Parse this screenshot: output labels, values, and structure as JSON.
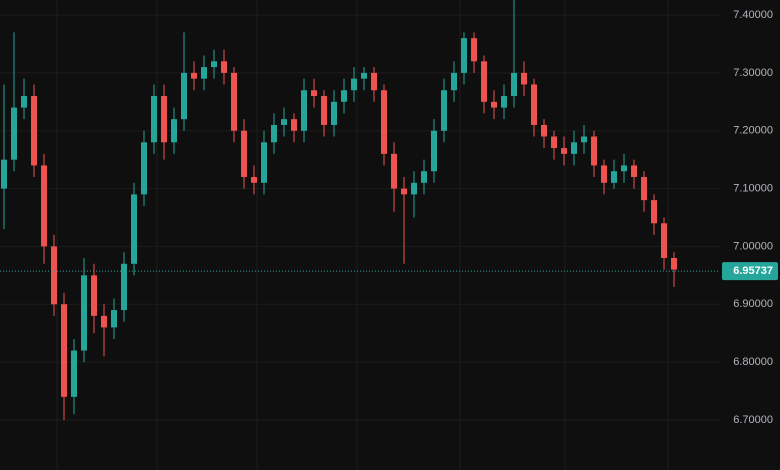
{
  "chart_data": {
    "type": "candlestick",
    "open": [
      7.1,
      7.15,
      7.24,
      7.26,
      7.14,
      7.0,
      6.9,
      6.74,
      6.82,
      6.95,
      6.88,
      6.86,
      6.89,
      6.97,
      7.09,
      7.18,
      7.26,
      7.18,
      7.22,
      7.3,
      7.29,
      7.31,
      7.32,
      7.3,
      7.2,
      7.12,
      7.11,
      7.18,
      7.21,
      7.22,
      7.2,
      7.27,
      7.26,
      7.21,
      7.25,
      7.27,
      7.29,
      7.3,
      7.27,
      7.16,
      7.1,
      7.09,
      7.11,
      7.13,
      7.2,
      7.27,
      7.3,
      7.36,
      7.32,
      7.25,
      7.24,
      7.26,
      7.3,
      7.28,
      7.21,
      7.19,
      7.17,
      7.16,
      7.18,
      7.19,
      7.14,
      7.11,
      7.13,
      7.14,
      7.12,
      7.08,
      7.04,
      6.98
    ],
    "high": [
      7.28,
      7.37,
      7.29,
      7.28,
      7.16,
      7.02,
      6.92,
      6.84,
      6.98,
      6.97,
      6.9,
      6.91,
      6.99,
      7.11,
      7.2,
      7.28,
      7.28,
      7.24,
      7.37,
      7.32,
      7.33,
      7.34,
      7.34,
      7.31,
      7.22,
      7.14,
      7.2,
      7.23,
      7.24,
      7.23,
      7.29,
      7.29,
      7.27,
      7.27,
      7.29,
      7.31,
      7.31,
      7.31,
      7.28,
      7.18,
      7.12,
      7.13,
      7.15,
      7.22,
      7.29,
      7.32,
      7.37,
      7.37,
      7.33,
      7.27,
      7.28,
      7.43,
      7.32,
      7.29,
      7.22,
      7.2,
      7.19,
      7.2,
      7.21,
      7.2,
      7.15,
      7.15,
      7.16,
      7.15,
      7.13,
      7.09,
      7.05,
      6.99
    ],
    "low": [
      7.03,
      7.13,
      7.22,
      7.12,
      6.97,
      6.88,
      6.7,
      6.71,
      6.8,
      6.85,
      6.81,
      6.84,
      6.87,
      6.95,
      7.07,
      7.16,
      7.15,
      7.16,
      7.2,
      7.27,
      7.27,
      7.29,
      7.28,
      7.18,
      7.1,
      7.09,
      7.09,
      7.16,
      7.19,
      7.18,
      7.18,
      7.24,
      7.19,
      7.19,
      7.23,
      7.25,
      7.27,
      7.25,
      7.14,
      7.06,
      6.97,
      7.05,
      7.09,
      7.11,
      7.18,
      7.25,
      7.28,
      7.3,
      7.23,
      7.22,
      7.22,
      7.24,
      7.26,
      7.19,
      7.17,
      7.15,
      7.14,
      7.14,
      7.16,
      7.12,
      7.09,
      7.1,
      7.11,
      7.1,
      7.06,
      7.02,
      6.96,
      6.93
    ],
    "close": [
      7.15,
      7.24,
      7.26,
      7.14,
      7.0,
      6.9,
      6.74,
      6.82,
      6.95,
      6.88,
      6.86,
      6.89,
      6.97,
      7.09,
      7.18,
      7.26,
      7.18,
      7.22,
      7.3,
      7.29,
      7.31,
      7.32,
      7.3,
      7.2,
      7.12,
      7.11,
      7.18,
      7.21,
      7.22,
      7.2,
      7.27,
      7.26,
      7.21,
      7.25,
      7.27,
      7.29,
      7.3,
      7.27,
      7.16,
      7.1,
      7.09,
      7.11,
      7.13,
      7.2,
      7.27,
      7.3,
      7.36,
      7.32,
      7.25,
      7.24,
      7.26,
      7.3,
      7.28,
      7.21,
      7.19,
      7.17,
      7.16,
      7.18,
      7.19,
      7.14,
      7.11,
      7.13,
      7.14,
      7.12,
      7.08,
      7.04,
      6.98,
      6.96
    ],
    "up_color": "#26a69a",
    "down_color": "#ef5350",
    "ylim": [
      6.6135,
      7.426
    ],
    "yticks": [
      {
        "value": 6.7,
        "label": "6.70000"
      },
      {
        "value": 6.8,
        "label": "6.80000"
      },
      {
        "value": 6.9,
        "label": "6.90000"
      },
      {
        "value": 7.0,
        "label": "7.00000"
      },
      {
        "value": 7.1,
        "label": "7.10000"
      },
      {
        "value": 7.2,
        "label": "7.20000"
      },
      {
        "value": 7.3,
        "label": "7.30000"
      },
      {
        "value": 7.4,
        "label": "7.40000"
      }
    ],
    "last_price": 6.95737,
    "last_price_color": "#26a69a",
    "grid": true
  }
}
